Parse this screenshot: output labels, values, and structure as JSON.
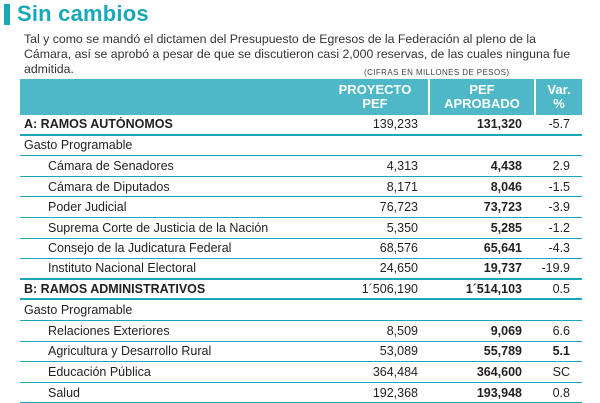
{
  "title": "Sin cambios",
  "intro": "Tal y como se mandó el dictamen del Presupuesto de Egresos de la Federación al pleno de la Cámara, así se aprobó a pesar de que se discutieron casi 2,000 reservas, de las cuales ninguna fue admitida.",
  "units": "(Cifras en millones de pesos)",
  "header": {
    "col1a": "PROYECTO",
    "col1b": "PEF",
    "col2a": "PEF",
    "col2b": "APROBADO",
    "col3a": "Var.",
    "col3b": "%"
  },
  "rows": [
    {
      "label": "A: RAMOS AUTÓNOMOS",
      "proyecto": "139,233",
      "aprobado": "131,320",
      "var": "-5.7"
    },
    {
      "label": "Gasto Programable",
      "proyecto": "",
      "aprobado": "",
      "var": ""
    },
    {
      "label": "Cámara de Senadores",
      "proyecto": "4,313",
      "aprobado": "4,438",
      "var": "2.9"
    },
    {
      "label": "Cámara de Diputados",
      "proyecto": "8,171",
      "aprobado": "8,046",
      "var": "-1.5"
    },
    {
      "label": "Poder Judicial",
      "proyecto": "76,723",
      "aprobado": "73,723",
      "var": "-3.9"
    },
    {
      "label": "Suprema Corte de Justicia de la Nación",
      "proyecto": "5,350",
      "aprobado": "5,285",
      "var": "-1.2"
    },
    {
      "label": "Consejo de la Judicatura Federal",
      "proyecto": "68,576",
      "aprobado": "65,641",
      "var": "-4.3"
    },
    {
      "label": "Instituto Nacional Electoral",
      "proyecto": "24,650",
      "aprobado": "19,737",
      "var": "-19.9"
    },
    {
      "label": "B: RAMOS ADMINISTRATIVOS",
      "proyecto": "1´506,190",
      "aprobado": "1´514,103",
      "var": "0.5"
    },
    {
      "label": "Gasto Programable",
      "proyecto": "",
      "aprobado": "",
      "var": ""
    },
    {
      "label": "Relaciones Exteriores",
      "proyecto": "8,509",
      "aprobado": "9,069",
      "var": "6.6"
    },
    {
      "label": "Agricultura y Desarrollo Rural",
      "proyecto": "53,089",
      "aprobado": "55,789",
      "var": "5.1"
    },
    {
      "label": "Educación Pública",
      "proyecto": "364,484",
      "aprobado": "364,600",
      "var": "SC"
    },
    {
      "label": "Salud",
      "proyecto": "192,368",
      "aprobado": "193,948",
      "var": "0.8"
    }
  ]
}
